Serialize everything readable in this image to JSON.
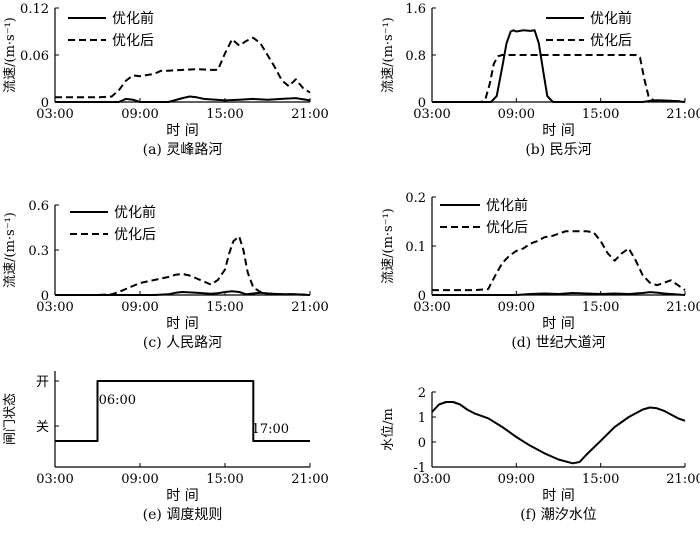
{
  "shared": {
    "x_ticks": [
      "03:00",
      "09:00",
      "15:00",
      "21:00"
    ],
    "x_label": "时 间",
    "y_label_velocity": "流速/(m·s⁻¹)",
    "legend_before": "优化前",
    "legend_after": "优化后"
  },
  "chart_data": [
    {
      "id": "a",
      "type": "line",
      "title": "(a) 灵峰路河",
      "xlabel": "时 间",
      "ylabel": "流速/(m·s⁻¹)",
      "xlim": [
        3,
        21
      ],
      "ylim": [
        0,
        0.12
      ],
      "y_ticks": [
        "0",
        "0.06",
        "0.12"
      ],
      "y_tick_values": [
        0,
        0.06,
        0.12
      ],
      "legend": "top-left",
      "series": [
        {
          "name": "优化前",
          "style": "solid",
          "x": [
            3,
            7.5,
            8,
            8.5,
            9,
            11,
            12,
            12.5,
            13,
            13.5,
            15,
            16,
            17,
            18,
            19,
            20,
            21
          ],
          "y": [
            0,
            0,
            0.004,
            0.003,
            0,
            0,
            0.005,
            0.007,
            0.006,
            0.004,
            0.002,
            0.003,
            0.004,
            0.003,
            0.004,
            0.005,
            0.002
          ]
        },
        {
          "name": "优化后",
          "style": "dashed",
          "x": [
            3,
            4,
            5,
            6,
            7,
            7.5,
            8,
            8.5,
            9,
            10,
            10.5,
            11,
            12,
            13,
            14,
            14.5,
            15,
            15.5,
            16,
            16.5,
            17,
            17.5,
            18,
            18.5,
            19,
            19.5,
            20,
            20.5,
            21
          ],
          "y": [
            0.006,
            0.006,
            0.006,
            0.006,
            0.007,
            0.015,
            0.027,
            0.034,
            0.033,
            0.036,
            0.04,
            0.04,
            0.041,
            0.042,
            0.041,
            0.041,
            0.062,
            0.08,
            0.072,
            0.078,
            0.082,
            0.075,
            0.06,
            0.045,
            0.028,
            0.02,
            0.029,
            0.018,
            0.012
          ]
        }
      ]
    },
    {
      "id": "b",
      "type": "line",
      "title": "(b) 民乐河",
      "xlabel": "时 间",
      "ylabel": "流速/(m·s⁻¹)",
      "xlim": [
        3,
        21
      ],
      "ylim": [
        0,
        1.6
      ],
      "y_ticks": [
        "0",
        "0.8",
        "1.6"
      ],
      "y_tick_values": [
        0,
        0.8,
        1.6
      ],
      "legend": "top-right",
      "series": [
        {
          "name": "优化前",
          "style": "solid",
          "x": [
            3,
            7.2,
            7.6,
            8,
            8.3,
            8.6,
            8.8,
            9,
            9.5,
            10,
            10.3,
            10.6,
            11,
            11.2,
            11.6,
            18,
            18.5,
            19,
            20,
            21
          ],
          "y": [
            0,
            0,
            0.1,
            0.6,
            1.0,
            1.2,
            1.22,
            1.2,
            1.22,
            1.21,
            1.22,
            1.0,
            0.4,
            0.1,
            0,
            0,
            0.02,
            0.03,
            0.02,
            0
          ]
        },
        {
          "name": "优化后",
          "style": "dashed",
          "x": [
            3,
            6.5,
            6.8,
            7.1,
            7.4,
            7.7,
            8,
            10,
            15,
            17.5,
            17.8,
            18.1,
            18.4,
            18.8,
            19.5,
            21
          ],
          "y": [
            0,
            0,
            0.05,
            0.3,
            0.65,
            0.78,
            0.8,
            0.8,
            0.8,
            0.8,
            0.76,
            0.4,
            0.1,
            0.02,
            0.02,
            0.01
          ]
        }
      ]
    },
    {
      "id": "c",
      "type": "line",
      "title": "(c) 人民路河",
      "xlabel": "时 间",
      "ylabel": "流速/(m·s⁻¹)",
      "xlim": [
        3,
        21
      ],
      "ylim": [
        0,
        0.6
      ],
      "y_ticks": [
        "0",
        "0.3",
        "0.6"
      ],
      "y_tick_values": [
        0,
        0.3,
        0.6
      ],
      "legend": "top-left",
      "series": [
        {
          "name": "优化前",
          "style": "solid",
          "x": [
            3,
            10,
            11,
            11.5,
            12,
            13,
            14,
            14.5,
            15,
            15.5,
            16,
            16.5,
            17,
            17.5,
            18,
            19,
            20,
            21
          ],
          "y": [
            0,
            0,
            0.005,
            0.015,
            0.02,
            0.015,
            0.008,
            0.012,
            0.02,
            0.025,
            0.02,
            0.005,
            0.01,
            0.015,
            0.01,
            0.005,
            0.005,
            0
          ]
        },
        {
          "name": "优化后",
          "style": "dashed",
          "x": [
            3,
            6,
            7,
            7.5,
            8,
            8.5,
            9,
            10,
            11,
            11.5,
            12,
            12.5,
            13,
            13.5,
            14,
            14.5,
            15,
            15.3,
            15.6,
            16,
            16.3,
            16.6,
            17,
            17.5,
            18,
            19,
            20,
            21
          ],
          "y": [
            0,
            0,
            0.005,
            0.02,
            0.04,
            0.06,
            0.08,
            0.1,
            0.12,
            0.135,
            0.14,
            0.13,
            0.11,
            0.09,
            0.07,
            0.1,
            0.17,
            0.28,
            0.36,
            0.39,
            0.3,
            0.15,
            0.05,
            0.02,
            0.01,
            0.005,
            0.005,
            0
          ]
        }
      ]
    },
    {
      "id": "d",
      "type": "line",
      "title": "(d) 世纪大道河",
      "xlabel": "时 间",
      "ylabel": "流速/(m·s⁻¹)",
      "xlim": [
        3,
        21
      ],
      "ylim": [
        0,
        0.2
      ],
      "y_ticks": [
        "0",
        "0.1",
        "0.2"
      ],
      "y_tick_values": [
        0,
        0.1,
        0.2
      ],
      "legend": "top-left",
      "series": [
        {
          "name": "优化前",
          "style": "solid",
          "x": [
            3,
            9,
            10,
            11,
            12,
            13,
            14,
            15,
            16,
            17,
            18,
            18.5,
            19,
            19.5,
            20,
            21
          ],
          "y": [
            0,
            0,
            0.002,
            0.003,
            0.002,
            0.004,
            0.003,
            0.002,
            0.003,
            0.002,
            0.004,
            0.006,
            0.005,
            0.003,
            0.002,
            0
          ]
        },
        {
          "name": "优化后",
          "style": "dashed",
          "x": [
            3,
            4,
            5,
            6,
            7,
            7.5,
            8,
            8.5,
            9,
            9.5,
            10,
            10.5,
            11,
            11.5,
            12,
            12.5,
            13,
            14,
            14.5,
            15,
            15.5,
            16,
            16.5,
            17,
            17.5,
            18,
            18.5,
            19,
            19.5,
            20,
            20.5,
            21
          ],
          "y": [
            0.01,
            0.01,
            0.01,
            0.01,
            0.012,
            0.04,
            0.065,
            0.08,
            0.09,
            0.095,
            0.105,
            0.11,
            0.118,
            0.12,
            0.125,
            0.13,
            0.13,
            0.13,
            0.128,
            0.11,
            0.085,
            0.07,
            0.085,
            0.095,
            0.07,
            0.04,
            0.025,
            0.02,
            0.025,
            0.03,
            0.02,
            0.01
          ]
        }
      ]
    },
    {
      "id": "e",
      "type": "line",
      "title": "(e) 调度规则",
      "xlabel": "时 间",
      "ylabel": "闸门状态",
      "xlim": [
        3,
        21
      ],
      "ylim": [
        0,
        1
      ],
      "y_ticks": [
        "关",
        "开"
      ],
      "y_tick_values": [
        0.5,
        1.1
      ],
      "annotations": [
        {
          "text": "06:00",
          "x": 7.4,
          "y": 0.95
        },
        {
          "text": "17:00",
          "x": 18.2,
          "y": 0.58
        }
      ],
      "series": [
        {
          "style": "solid",
          "x": [
            3,
            6,
            6,
            17,
            17,
            21
          ],
          "y": [
            0.5,
            0.5,
            1.1,
            1.1,
            0.5,
            0.5
          ]
        }
      ]
    },
    {
      "id": "f",
      "type": "line",
      "title": "(f) 潮汐水位",
      "xlabel": "时 间",
      "ylabel": "水位/m",
      "xlim": [
        3,
        21
      ],
      "ylim": [
        -1,
        2
      ],
      "y_ticks": [
        "-1",
        "0",
        "1",
        "2"
      ],
      "y_tick_values": [
        -1,
        0,
        1,
        2
      ],
      "series": [
        {
          "style": "solid",
          "x": [
            3,
            3.5,
            4,
            4.5,
            5,
            5.5,
            6,
            7,
            8,
            9,
            10,
            11,
            12,
            13,
            13.5,
            14,
            15,
            16,
            17,
            18,
            18.5,
            19,
            19.5,
            20,
            20.5,
            21
          ],
          "y": [
            1.2,
            1.5,
            1.6,
            1.6,
            1.5,
            1.3,
            1.15,
            0.95,
            0.6,
            0.2,
            -0.15,
            -0.45,
            -0.7,
            -0.85,
            -0.8,
            -0.5,
            0.05,
            0.6,
            1.0,
            1.3,
            1.38,
            1.35,
            1.25,
            1.1,
            0.95,
            0.85
          ]
        }
      ]
    }
  ]
}
